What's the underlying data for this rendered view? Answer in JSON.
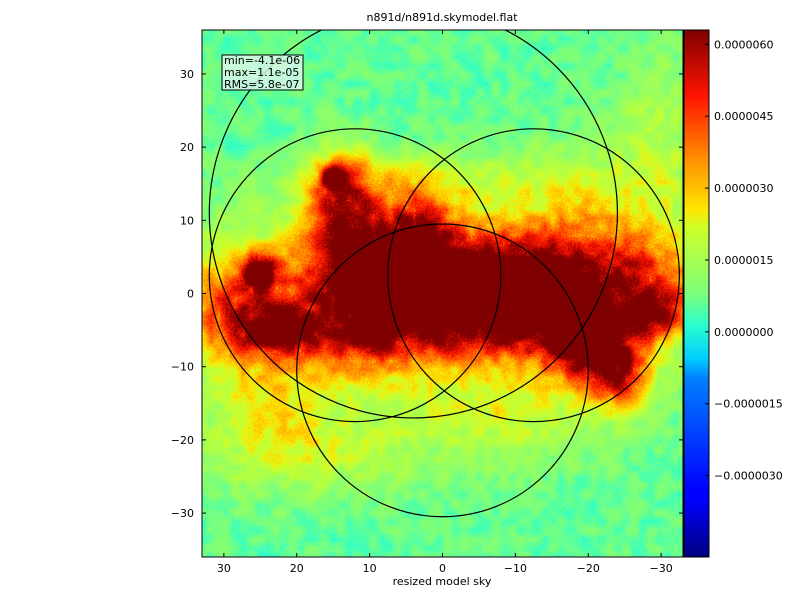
{
  "chart_data": {
    "type": "heatmap",
    "title": "n891d/n891d.skymodel.flat",
    "xlabel": "resized model sky",
    "ylabel": "",
    "xlim": [
      33,
      -33
    ],
    "ylim": [
      -36,
      36
    ],
    "x_ticks": [
      30,
      20,
      10,
      0,
      -10,
      -20,
      -30
    ],
    "x_tick_labels": [
      "30",
      "20",
      "10",
      "0",
      "−10",
      "−20",
      "−30"
    ],
    "y_ticks": [
      30,
      20,
      10,
      0,
      -10,
      -20,
      -30
    ],
    "y_tick_labels": [
      "30",
      "20",
      "10",
      "0",
      "−10",
      "−20",
      "−30"
    ],
    "grid": false,
    "stats": {
      "min_label": "min=-4.1e-06",
      "max_label": "max=1.1e-05",
      "rms_label": "RMS=5.8e-07"
    },
    "colorbar": {
      "colormap": "jet",
      "vmin": -4.7e-06,
      "vmax": 6.3e-06,
      "ticks": [
        6e-06,
        4.5e-06,
        3e-06,
        1.5e-06,
        0.0,
        -1.5e-06,
        -3e-06
      ],
      "tick_labels": [
        "0.0000060",
        "0.0000045",
        "0.0000030",
        "0.0000015",
        "0.0000000",
        "−0.0000015",
        "−0.0000030"
      ]
    },
    "circles": [
      {
        "cx": 4.0,
        "cy": 11.0,
        "r": 28.0
      },
      {
        "cx": 12.0,
        "cy": 2.5,
        "r": 20.0
      },
      {
        "cx": 0.0,
        "cy": -10.5,
        "r": 20.0
      },
      {
        "cx": -12.5,
        "cy": 2.5,
        "r": 20.0
      }
    ],
    "features": [
      {
        "x": 3,
        "y": 0,
        "sx": 28,
        "sy": 7,
        "level": 3e-06
      },
      {
        "x": 0,
        "y": 1,
        "sx": 8,
        "sy": 4,
        "level": 4e-06
      },
      {
        "x": 10,
        "y": 4,
        "sx": 6,
        "sy": 6,
        "level": 3.5e-06
      },
      {
        "x": 14,
        "y": 12,
        "sx": 3,
        "sy": 5,
        "level": 3.5e-06
      },
      {
        "x": 15,
        "y": 16,
        "sx": 1,
        "sy": 1,
        "level": 5.5e-06
      },
      {
        "x": 25,
        "y": 3,
        "sx": 1.5,
        "sy": 1.5,
        "level": 6e-06
      },
      {
        "x": 22,
        "y": -5,
        "sx": 3,
        "sy": 2,
        "level": 4.5e-06
      },
      {
        "x": 28,
        "y": -3,
        "sx": 4,
        "sy": 4,
        "level": 2.8e-06
      },
      {
        "x": -10,
        "y": 3,
        "sx": 8,
        "sy": 4,
        "level": 3e-06
      },
      {
        "x": -15,
        "y": -2,
        "sx": 6,
        "sy": 4,
        "level": 3e-06
      },
      {
        "x": -20,
        "y": -7,
        "sx": 4,
        "sy": 3,
        "level": 5.5e-06
      },
      {
        "x": -24,
        "y": -11,
        "sx": 3,
        "sy": 3,
        "level": 4e-06
      },
      {
        "x": -29,
        "y": -3,
        "sx": 3,
        "sy": 2,
        "level": 4e-06
      },
      {
        "x": -26,
        "y": 2,
        "sx": 6,
        "sy": 4,
        "level": 2.5e-06
      },
      {
        "x": 3,
        "y": 8,
        "sx": 3,
        "sy": 3,
        "level": 3.5e-06
      },
      {
        "x": -4,
        "y": -5,
        "sx": 8,
        "sy": 3,
        "level": 2.5e-06
      },
      {
        "x": 12,
        "y": -6,
        "sx": 6,
        "sy": 4,
        "level": 2.2e-06
      },
      {
        "x": 24,
        "y": -14,
        "sx": 6,
        "sy": 6,
        "level": 1.5e-06
      },
      {
        "x": -20,
        "y": 12,
        "sx": 8,
        "sy": 6,
        "level": 1.5e-06
      },
      {
        "x": 18,
        "y": -22,
        "sx": 10,
        "sy": 4,
        "level": 1.2e-06
      },
      {
        "x": -8,
        "y": -16,
        "sx": 12,
        "sy": 5,
        "level": 1.4e-06
      },
      {
        "x": -30,
        "y": 22,
        "sx": 4,
        "sy": 8,
        "level": 1e-06
      },
      {
        "x": 5,
        "y": 15,
        "sx": 10,
        "sy": 3,
        "level": 1.6e-06
      }
    ],
    "background_level": 6e-07,
    "noise_amplitude": 6e-07
  }
}
